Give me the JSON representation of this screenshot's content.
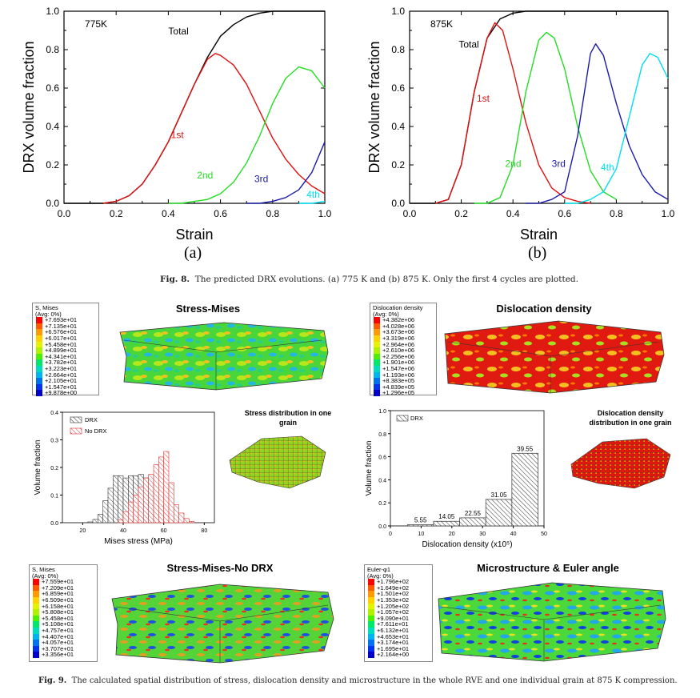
{
  "fig8": {
    "caption_label": "Fig. 8.",
    "caption_text": "The predicted DRX evolutions. (a) 775 K and (b) 875 K. Only the first 4 cycles are plotted.",
    "panel_a_label": "(a)",
    "panel_b_label": "(b)"
  },
  "fig9": {
    "caption_label": "Fig. 9.",
    "caption_text": "The calculated spatial distribution of stress, dislocation density and microstructure in the whole RVE and one individual grain at 875 K compression.",
    "titles": {
      "stress_mises": "Stress-Mises",
      "dislocation": "Dislocation density",
      "stress_mises_nodrx": "Stress-Mises-No DRX",
      "micro": "Microstructure & Euler angle",
      "stress_grain_1": "Stress distribution in one",
      "stress_grain_2": "grain",
      "disl_grain_1": "Dislocation density",
      "disl_grain_2": "distribution in one grain"
    },
    "legend_mises": {
      "title": "S, Mises",
      "avg": "(Avg: 0%)",
      "values": [
        "+7.693e+01",
        "+7.135e+01",
        "+6.576e+01",
        "+6.017e+01",
        "+5.458e+01",
        "+4.899e+01",
        "+4.341e+01",
        "+3.782e+01",
        "+3.223e+01",
        "+2.664e+01",
        "+2.105e+01",
        "+1.547e+01",
        "+9.878e+00"
      ]
    },
    "legend_disl": {
      "title": "Dislocation density",
      "avg": "(Avg: 0%)",
      "values": [
        "+4.382e+06",
        "+4.028e+06",
        "+3.673e+06",
        "+3.319e+06",
        "+2.964e+06",
        "+2.610e+06",
        "+2.256e+06",
        "+1.901e+06",
        "+1.547e+06",
        "+1.193e+06",
        "+8.383e+05",
        "+4.839e+05",
        "+1.296e+05"
      ]
    },
    "legend_mises_nodrx": {
      "title": "S, Mises",
      "avg": "(Avg: 0%)",
      "values": [
        "+7.559e+01",
        "+7.209e+01",
        "+6.859e+01",
        "+6.509e+01",
        "+6.158e+01",
        "+5.808e+01",
        "+5.458e+01",
        "+5.108e+01",
        "+4.757e+01",
        "+4.407e+01",
        "+4.057e+01",
        "+3.707e+01",
        "+3.356e+01"
      ]
    },
    "legend_euler": {
      "title": "Euler-φ1",
      "avg": "(Avg: 0%)",
      "values": [
        "+1.796e+02",
        "+1.649e+02",
        "+1.501e+02",
        "+1.353e+02",
        "+1.205e+02",
        "+1.057e+02",
        "+9.090e+01",
        "+7.611e+01",
        "+6.132e+01",
        "+4.653e+01",
        "+3.174e+01",
        "+1.695e+01",
        "+2.164e+00"
      ]
    },
    "legend_colors": [
      "#ff0000",
      "#ff5a00",
      "#ff9b00",
      "#ffd200",
      "#e4f400",
      "#aef200",
      "#4ef000",
      "#00e86a",
      "#00dcc0",
      "#00b4f0",
      "#0072f0",
      "#0032f0",
      "#0000c8"
    ]
  },
  "chart_data": [
    {
      "type": "line",
      "panel": "(a)",
      "annotation": "775K",
      "xlabel": "Strain",
      "ylabel": "DRX volume fraction",
      "xlim": [
        0,
        1.0
      ],
      "ylim": [
        0,
        1.0
      ],
      "xticks": [
        "0.0",
        "0.2",
        "0.4",
        "0.6",
        "0.8",
        "1.0"
      ],
      "yticks": [
        "0.0",
        "0.2",
        "0.4",
        "0.6",
        "0.8",
        "1.0"
      ],
      "series": [
        {
          "name": "Total",
          "color": "#000000",
          "x": [
            0.0,
            0.15,
            0.2,
            0.25,
            0.3,
            0.35,
            0.4,
            0.45,
            0.5,
            0.55,
            0.6,
            0.65,
            0.7,
            0.75,
            0.8,
            0.9,
            1.0
          ],
          "y": [
            0.0,
            0.0,
            0.01,
            0.04,
            0.1,
            0.2,
            0.32,
            0.47,
            0.62,
            0.76,
            0.87,
            0.93,
            0.97,
            0.99,
            1.0,
            1.0,
            1.0
          ]
        },
        {
          "name": "1st",
          "color": "#e01010",
          "x": [
            0.15,
            0.2,
            0.25,
            0.3,
            0.35,
            0.4,
            0.45,
            0.5,
            0.55,
            0.58,
            0.6,
            0.65,
            0.7,
            0.75,
            0.8,
            0.85,
            0.9,
            0.95,
            1.0
          ],
          "y": [
            0.0,
            0.01,
            0.04,
            0.1,
            0.2,
            0.32,
            0.47,
            0.62,
            0.75,
            0.78,
            0.77,
            0.72,
            0.62,
            0.48,
            0.34,
            0.23,
            0.15,
            0.09,
            0.05
          ]
        },
        {
          "name": "2nd",
          "color": "#22dd22",
          "x": [
            0.4,
            0.45,
            0.5,
            0.55,
            0.6,
            0.65,
            0.7,
            0.75,
            0.8,
            0.85,
            0.9,
            0.95,
            1.0
          ],
          "y": [
            0.0,
            0.0,
            0.01,
            0.02,
            0.05,
            0.11,
            0.21,
            0.35,
            0.52,
            0.65,
            0.71,
            0.69,
            0.6
          ]
        },
        {
          "name": "3rd",
          "color": "#1a1aaa",
          "x": [
            0.7,
            0.75,
            0.8,
            0.85,
            0.9,
            0.95,
            1.0
          ],
          "y": [
            0.0,
            0.0,
            0.01,
            0.03,
            0.07,
            0.16,
            0.32
          ]
        },
        {
          "name": "4th",
          "color": "#00e0f0",
          "x": [
            0.9,
            0.95,
            1.0
          ],
          "y": [
            0.0,
            0.0,
            0.01
          ]
        }
      ]
    },
    {
      "type": "line",
      "panel": "(b)",
      "annotation": "875K",
      "xlabel": "Strain",
      "ylabel": "DRX volume fraction",
      "xlim": [
        0,
        1.0
      ],
      "ylim": [
        0,
        1.0
      ],
      "xticks": [
        "0.0",
        "0.2",
        "0.4",
        "0.6",
        "0.8",
        "1.0"
      ],
      "yticks": [
        "0.0",
        "0.2",
        "0.4",
        "0.6",
        "0.8",
        "1.0"
      ],
      "series": [
        {
          "name": "Total",
          "color": "#000000",
          "x": [
            0.0,
            0.1,
            0.15,
            0.2,
            0.25,
            0.3,
            0.35,
            0.4,
            0.45,
            0.5,
            0.55,
            1.0
          ],
          "y": [
            0.0,
            0.0,
            0.02,
            0.2,
            0.58,
            0.86,
            0.96,
            0.99,
            1.0,
            1.0,
            1.0,
            1.0
          ]
        },
        {
          "name": "1st",
          "color": "#e01010",
          "x": [
            0.1,
            0.15,
            0.2,
            0.25,
            0.3,
            0.33,
            0.36,
            0.4,
            0.45,
            0.5,
            0.55,
            0.6,
            0.65,
            0.7
          ],
          "y": [
            0.0,
            0.02,
            0.2,
            0.58,
            0.86,
            0.94,
            0.9,
            0.7,
            0.42,
            0.2,
            0.08,
            0.03,
            0.01,
            0.0
          ]
        },
        {
          "name": "2nd",
          "color": "#22dd22",
          "x": [
            0.25,
            0.3,
            0.35,
            0.4,
            0.45,
            0.5,
            0.53,
            0.56,
            0.6,
            0.65,
            0.7,
            0.75,
            0.8
          ],
          "y": [
            0.0,
            0.0,
            0.03,
            0.2,
            0.58,
            0.85,
            0.89,
            0.86,
            0.7,
            0.4,
            0.17,
            0.06,
            0.02
          ]
        },
        {
          "name": "3rd",
          "color": "#1a1aaa",
          "x": [
            0.45,
            0.5,
            0.55,
            0.6,
            0.65,
            0.7,
            0.72,
            0.75,
            0.8,
            0.85,
            0.9,
            0.95,
            1.0
          ],
          "y": [
            0.0,
            0.0,
            0.02,
            0.06,
            0.35,
            0.78,
            0.83,
            0.77,
            0.52,
            0.3,
            0.15,
            0.06,
            0.02
          ]
        },
        {
          "name": "4th",
          "color": "#00e0f0",
          "x": [
            0.6,
            0.65,
            0.7,
            0.75,
            0.8,
            0.85,
            0.9,
            0.93,
            0.96,
            1.0
          ],
          "y": [
            0.0,
            0.0,
            0.02,
            0.06,
            0.18,
            0.45,
            0.72,
            0.78,
            0.76,
            0.65
          ]
        }
      ]
    },
    {
      "type": "bar",
      "panel": "Mises stress histogram",
      "xlabel": "Mises stress (MPa)",
      "ylabel": "Volume fraction",
      "xlim": [
        10,
        85
      ],
      "ylim": [
        0,
        0.4
      ],
      "xticks": [
        "20",
        "40",
        "60",
        "80"
      ],
      "yticks": [
        "0.0",
        "0.1",
        "0.2",
        "0.3",
        "0.4"
      ],
      "legend": [
        "DRX",
        "No DRX"
      ],
      "series": [
        {
          "name": "DRX",
          "color": "#333333",
          "bins": [
            20,
            22.5,
            25,
            27.5,
            30,
            32.5,
            35,
            37.5,
            40,
            42.5,
            45,
            47.5,
            50,
            52.5,
            55,
            57.5,
            60,
            62.5,
            65
          ],
          "values": [
            0.0,
            0.003,
            0.012,
            0.03,
            0.08,
            0.125,
            0.17,
            0.17,
            0.162,
            0.17,
            0.17,
            0.175,
            0.162,
            0.14,
            0.11,
            0.06,
            0.035,
            0.01,
            0.0
          ]
        },
        {
          "name": "No DRX",
          "color": "#e03030",
          "bins": [
            35,
            37.5,
            40,
            42.5,
            45,
            47.5,
            50,
            52.5,
            55,
            57.5,
            60,
            62.5,
            65,
            67.5,
            70,
            72.5,
            75
          ],
          "values": [
            0.0,
            0.01,
            0.04,
            0.075,
            0.1,
            0.13,
            0.162,
            0.175,
            0.21,
            0.238,
            0.258,
            0.145,
            0.065,
            0.035,
            0.015,
            0.005,
            0.0
          ]
        }
      ]
    },
    {
      "type": "bar",
      "panel": "Dislocation density histogram",
      "xlabel": "Dislocation density (x10⁵)",
      "ylabel": "Volume fraction",
      "xlim": [
        0,
        50
      ],
      "ylim": [
        0,
        1.0
      ],
      "xticks": [
        "0",
        "10",
        "20",
        "30",
        "40",
        "50"
      ],
      "yticks": [
        "0.0",
        "0.2",
        "0.4",
        "0.6",
        "0.8",
        "1.0"
      ],
      "legend": [
        "DRX"
      ],
      "categories": [
        "5.55",
        "14.05",
        "22.55",
        "31.05",
        "39.55"
      ],
      "x": [
        5.55,
        14.05,
        22.55,
        31.05,
        39.55
      ],
      "values": [
        0.01,
        0.04,
        0.07,
        0.23,
        0.63
      ]
    }
  ]
}
